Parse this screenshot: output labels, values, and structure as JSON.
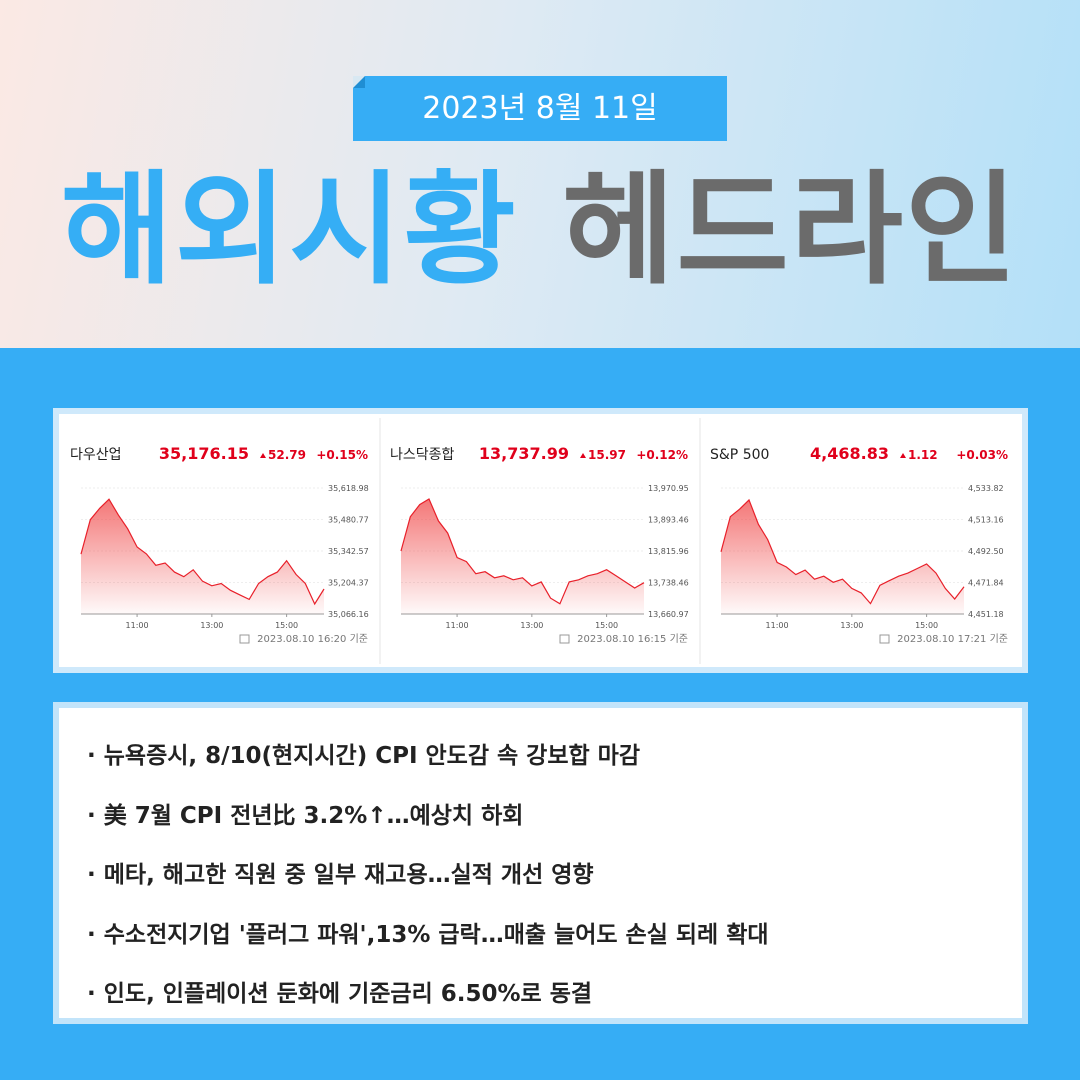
{
  "header": {
    "date": "2023년 8월 11일",
    "title_blue": "해외시황",
    "title_gray": "헤드라인"
  },
  "markets": [
    {
      "name": "다우산업",
      "price": {
        "value": 35176.15,
        "label": "35,176.15"
      },
      "change": 52.79,
      "change_pct": {
        "value": 0.15,
        "label": "+0.15%"
      },
      "x": [
        9.5,
        9.75,
        10,
        10.25,
        10.5,
        10.75,
        11,
        11.25,
        11.5,
        11.75,
        12,
        12.25,
        12.5,
        12.75,
        13,
        13.25,
        13.5,
        13.75,
        14,
        14.25,
        14.5,
        14.75,
        15,
        15.25,
        15.5,
        15.75,
        16
      ],
      "values": [
        35329,
        35480,
        35530,
        35570,
        35500,
        35440,
        35360,
        35330,
        35280,
        35290,
        35250,
        35230,
        35260,
        35210,
        35190,
        35200,
        35170,
        35150,
        35130,
        35200,
        35230,
        35250,
        35300,
        35240,
        35200,
        35110,
        35176
      ],
      "xlim": [
        9.5,
        16
      ],
      "xticks": [
        {
          "value": 11,
          "label": "11:00"
        },
        {
          "value": 13,
          "label": "13:00"
        },
        {
          "value": 15,
          "label": "15:00"
        }
      ],
      "ylim": [
        35066.16,
        35618.98
      ],
      "yticks": [
        {
          "value": 35066.16,
          "label": "35,066.16"
        },
        {
          "value": 35204.37,
          "label": "35,204.37"
        },
        {
          "value": 35342.57,
          "label": "35,342.57"
        },
        {
          "value": 35480.77,
          "label": "35,480.77"
        },
        {
          "value": 35618.98,
          "label": "35,618.98"
        }
      ],
      "timestamp": "2023.08.10 16:20 기준"
    },
    {
      "name": "나스닥종합",
      "price": {
        "value": 13737.99,
        "label": "13,737.99"
      },
      "change": 15.97,
      "change_pct": {
        "value": 0.12,
        "label": "+0.12%"
      },
      "x": [
        9.5,
        9.75,
        10,
        10.25,
        10.5,
        10.75,
        11,
        11.25,
        11.5,
        11.75,
        12,
        12.25,
        12.5,
        12.75,
        13,
        13.25,
        13.5,
        13.75,
        14,
        14.25,
        14.5,
        14.75,
        15,
        15.25,
        15.5,
        15.75,
        16
      ],
      "values": [
        13816,
        13900,
        13930,
        13944,
        13890,
        13860,
        13800,
        13790,
        13760,
        13765,
        13750,
        13755,
        13745,
        13750,
        13730,
        13740,
        13700,
        13686,
        13740,
        13745,
        13755,
        13760,
        13770,
        13755,
        13740,
        13725,
        13738
      ],
      "xlim": [
        9.5,
        16
      ],
      "xticks": [
        {
          "value": 11,
          "label": "11:00"
        },
        {
          "value": 13,
          "label": "13:00"
        },
        {
          "value": 15,
          "label": "15:00"
        }
      ],
      "ylim": [
        13660.97,
        13970.95
      ],
      "yticks": [
        {
          "value": 13660.97,
          "label": "13,660.97"
        },
        {
          "value": 13738.46,
          "label": "13,738.46"
        },
        {
          "value": 13815.96,
          "label": "13,815.96"
        },
        {
          "value": 13893.46,
          "label": "13,893.46"
        },
        {
          "value": 13970.95,
          "label": "13,970.95"
        }
      ],
      "timestamp": "2023.08.10 16:15 기준"
    },
    {
      "name": "S&P 500",
      "price": {
        "value": 4468.83,
        "label": "4,468.83"
      },
      "change": 1.12,
      "change_pct": {
        "value": 0.03,
        "label": "+0.03%"
      },
      "x": [
        9.5,
        9.75,
        10,
        10.25,
        10.5,
        10.75,
        11,
        11.25,
        11.5,
        11.75,
        12,
        12.25,
        12.5,
        12.75,
        13,
        13.25,
        13.5,
        13.75,
        14,
        14.25,
        14.5,
        14.75,
        15,
        15.25,
        15.5,
        15.75,
        16
      ],
      "values": [
        4492,
        4515,
        4520,
        4526,
        4510,
        4500,
        4485,
        4482,
        4477,
        4480,
        4474,
        4476,
        4472,
        4474,
        4468,
        4465,
        4458,
        4470,
        4473,
        4476,
        4478,
        4481,
        4484,
        4478,
        4468,
        4461,
        4469
      ],
      "xlim": [
        9.5,
        16
      ],
      "xticks": [
        {
          "value": 11,
          "label": "11:00"
        },
        {
          "value": 13,
          "label": "13:00"
        },
        {
          "value": 15,
          "label": "15:00"
        }
      ],
      "ylim": [
        4451.18,
        4533.82
      ],
      "yticks": [
        {
          "value": 4451.18,
          "label": "4,451.18"
        },
        {
          "value": 4471.84,
          "label": "4,471.84"
        },
        {
          "value": 4492.5,
          "label": "4,492.50"
        },
        {
          "value": 4513.16,
          "label": "4,513.16"
        },
        {
          "value": 4533.82,
          "label": "4,533.82"
        }
      ],
      "timestamp": "2023.08.10 17:21 기준"
    }
  ],
  "headlines": [
    "·  뉴욕증시, 8/10(현지시간) CPI 안도감 속 강보합 마감",
    "· 美 7월 CPI 전년比 3.2%↑…예상치 하회",
    "· 메타, 해고한 직원 중 일부 재고용…실적 개선 영향",
    "· 수소전지기업 '플러그 파워',13% 급락…매출 늘어도 손실 되레 확대",
    "·  인도, 인플레이션 둔화에 기준금리 6.50%로 동결"
  ]
}
